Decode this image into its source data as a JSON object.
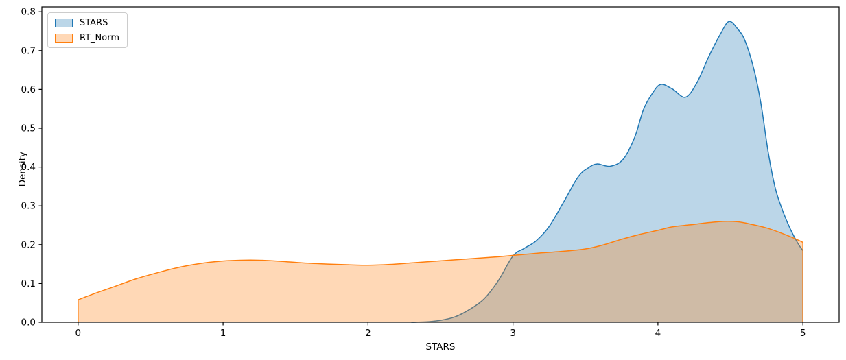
{
  "figure": {
    "background": "#ffffff",
    "text_color": "#000000",
    "spine_color": "#000000"
  },
  "axes": {
    "xlabel": "STARS",
    "ylabel": "Density"
  },
  "legend": {
    "position": "upper-left",
    "items": [
      {
        "label": "STARS",
        "line_color": "#1f77b4",
        "fill_color": "rgba(31,119,180,0.3)"
      },
      {
        "label": "RT_Norm",
        "line_color": "#ff7f0e",
        "fill_color": "rgba(255,127,14,0.3)"
      }
    ]
  },
  "chart_data": {
    "type": "area",
    "subtype": "kde-density",
    "title": "",
    "xlabel": "STARS",
    "ylabel": "Density",
    "xlim": [
      -0.25,
      5.25
    ],
    "ylim": [
      0,
      0.8127
    ],
    "xticks": [
      0,
      1,
      2,
      3,
      4,
      5
    ],
    "xtick_labels": [
      "0",
      "1",
      "2",
      "3",
      "4",
      "5"
    ],
    "yticks": [
      0,
      0.1,
      0.2,
      0.3,
      0.4,
      0.5,
      0.6,
      0.7,
      0.8
    ],
    "ytick_labels": [
      "0.0",
      "0.1",
      "0.2",
      "0.3",
      "0.4",
      "0.5",
      "0.6",
      "0.7",
      "0.8"
    ],
    "grid": false,
    "legend_position": "upper left",
    "series": [
      {
        "name": "STARS",
        "line_color": "#1f77b4",
        "fill_color": "rgba(31,119,180,0.3)",
        "drop_left": false,
        "drop_right": true,
        "points": [
          [
            2.3,
            0.0
          ],
          [
            2.4,
            0.001
          ],
          [
            2.5,
            0.005
          ],
          [
            2.6,
            0.014
          ],
          [
            2.7,
            0.033
          ],
          [
            2.8,
            0.06
          ],
          [
            2.9,
            0.108
          ],
          [
            3.0,
            0.171
          ],
          [
            3.08,
            0.191
          ],
          [
            3.16,
            0.21
          ],
          [
            3.25,
            0.247
          ],
          [
            3.35,
            0.31
          ],
          [
            3.45,
            0.375
          ],
          [
            3.52,
            0.398
          ],
          [
            3.58,
            0.408
          ],
          [
            3.67,
            0.402
          ],
          [
            3.76,
            0.42
          ],
          [
            3.84,
            0.477
          ],
          [
            3.9,
            0.548
          ],
          [
            3.96,
            0.589
          ],
          [
            4.02,
            0.613
          ],
          [
            4.1,
            0.601
          ],
          [
            4.19,
            0.58
          ],
          [
            4.27,
            0.618
          ],
          [
            4.35,
            0.684
          ],
          [
            4.43,
            0.742
          ],
          [
            4.49,
            0.775
          ],
          [
            4.55,
            0.756
          ],
          [
            4.6,
            0.726
          ],
          [
            4.66,
            0.655
          ],
          [
            4.71,
            0.565
          ],
          [
            4.76,
            0.44
          ],
          [
            4.81,
            0.345
          ],
          [
            4.86,
            0.288
          ],
          [
            4.91,
            0.243
          ],
          [
            4.96,
            0.207
          ],
          [
            5.0,
            0.184
          ]
        ]
      },
      {
        "name": "RT_Norm",
        "line_color": "#ff7f0e",
        "fill_color": "rgba(255,127,14,0.3)",
        "drop_left": true,
        "drop_right": true,
        "points": [
          [
            0.0,
            0.058
          ],
          [
            0.12,
            0.075
          ],
          [
            0.25,
            0.092
          ],
          [
            0.4,
            0.112
          ],
          [
            0.55,
            0.128
          ],
          [
            0.7,
            0.142
          ],
          [
            0.85,
            0.152
          ],
          [
            1.0,
            0.158
          ],
          [
            1.12,
            0.16
          ],
          [
            1.25,
            0.16
          ],
          [
            1.4,
            0.157
          ],
          [
            1.55,
            0.153
          ],
          [
            1.72,
            0.15
          ],
          [
            1.88,
            0.148
          ],
          [
            2.0,
            0.147
          ],
          [
            2.15,
            0.149
          ],
          [
            2.3,
            0.153
          ],
          [
            2.45,
            0.157
          ],
          [
            2.6,
            0.161
          ],
          [
            2.75,
            0.165
          ],
          [
            2.9,
            0.169
          ],
          [
            3.05,
            0.174
          ],
          [
            3.2,
            0.179
          ],
          [
            3.35,
            0.183
          ],
          [
            3.5,
            0.189
          ],
          [
            3.62,
            0.199
          ],
          [
            3.75,
            0.214
          ],
          [
            3.88,
            0.227
          ],
          [
            4.0,
            0.237
          ],
          [
            4.1,
            0.246
          ],
          [
            4.22,
            0.251
          ],
          [
            4.33,
            0.256
          ],
          [
            4.45,
            0.26
          ],
          [
            4.55,
            0.259
          ],
          [
            4.65,
            0.252
          ],
          [
            4.75,
            0.243
          ],
          [
            4.85,
            0.23
          ],
          [
            4.93,
            0.218
          ],
          [
            5.0,
            0.206
          ]
        ]
      }
    ]
  }
}
